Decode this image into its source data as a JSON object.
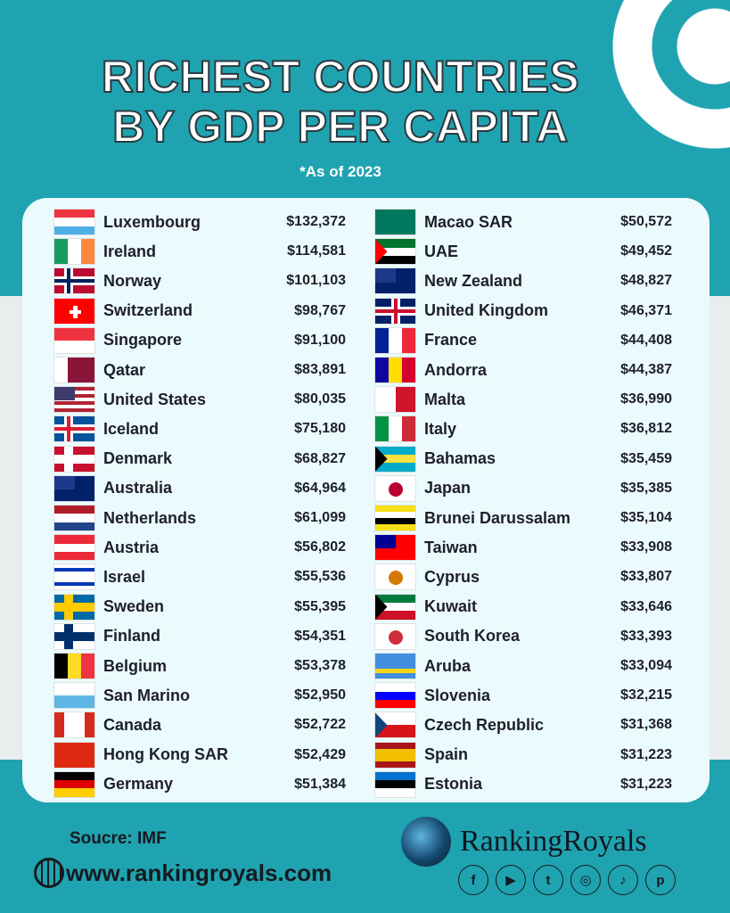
{
  "title_line1": "RICHEST COUNTRIES",
  "title_line2": "BY GDP PER CAPITA",
  "subtitle": "*As of 2023",
  "colors": {
    "background": "#20a3b0",
    "card": "#ebfbfd",
    "text": "#1e1f2a"
  },
  "left": [
    {
      "name": "Luxembourg",
      "value": "$132,372",
      "flag": {
        "t": "h",
        "c": [
          "#ef3340",
          "#ffffff",
          "#4fb0e8"
        ]
      }
    },
    {
      "name": "Ireland",
      "value": "$114,581",
      "flag": {
        "t": "v",
        "c": [
          "#169b62",
          "#ffffff",
          "#ff883e"
        ]
      }
    },
    {
      "name": "Norway",
      "value": "$101,103",
      "flag": {
        "t": "cross",
        "bg": "#ba0c2f",
        "o": "#ffffff",
        "i": "#00205b"
      }
    },
    {
      "name": "Switzerland",
      "value": "$98,767",
      "flag": {
        "t": "plus",
        "bg": "#ff0000",
        "o": "#ffffff"
      }
    },
    {
      "name": "Singapore",
      "value": "$91,100",
      "flag": {
        "t": "h",
        "c": [
          "#ef3340",
          "#ffffff"
        ]
      }
    },
    {
      "name": "Qatar",
      "value": "$83,891",
      "flag": {
        "t": "v",
        "c": [
          "#ffffff",
          "#8a1538",
          "#8a1538"
        ]
      }
    },
    {
      "name": "United States",
      "value": "$80,035",
      "flag": {
        "t": "canton",
        "c": [
          "#b22234",
          "#ffffff",
          "#b22234",
          "#ffffff",
          "#b22234",
          "#ffffff",
          "#b22234"
        ],
        "k": "#3c3b6e"
      }
    },
    {
      "name": "Iceland",
      "value": "$75,180",
      "flag": {
        "t": "cross",
        "bg": "#02529c",
        "o": "#ffffff",
        "i": "#dc1e35"
      }
    },
    {
      "name": "Denmark",
      "value": "$68,827",
      "flag": {
        "t": "cross",
        "bg": "#c8102e",
        "o": "#ffffff",
        "i": "#ffffff"
      }
    },
    {
      "name": "Australia",
      "value": "$64,964",
      "flag": {
        "t": "canton",
        "c": [
          "#012169"
        ],
        "k": "#1d3a8a"
      }
    },
    {
      "name": "Netherlands",
      "value": "$61,099",
      "flag": {
        "t": "h",
        "c": [
          "#ae1c28",
          "#ffffff",
          "#21468b"
        ]
      }
    },
    {
      "name": "Austria",
      "value": "$56,802",
      "flag": {
        "t": "h",
        "c": [
          "#ed2939",
          "#ffffff",
          "#ed2939"
        ]
      }
    },
    {
      "name": "Israel",
      "value": "$55,536",
      "flag": {
        "t": "h",
        "c": [
          "#ffffff",
          "#0038b8",
          "#ffffff",
          "#ffffff",
          "#ffffff",
          "#0038b8",
          "#ffffff"
        ]
      }
    },
    {
      "name": "Sweden",
      "value": "$55,395",
      "flag": {
        "t": "cross",
        "bg": "#006aa7",
        "o": "#fecc00",
        "i": "#fecc00"
      }
    },
    {
      "name": "Finland",
      "value": "$54,351",
      "flag": {
        "t": "cross",
        "bg": "#ffffff",
        "o": "#002f6c",
        "i": "#002f6c"
      }
    },
    {
      "name": "Belgium",
      "value": "$53,378",
      "flag": {
        "t": "v",
        "c": [
          "#000000",
          "#fdda24",
          "#ef3340"
        ]
      }
    },
    {
      "name": "San Marino",
      "value": "$52,950",
      "flag": {
        "t": "h",
        "c": [
          "#ffffff",
          "#5eb6e4"
        ]
      }
    },
    {
      "name": "Canada",
      "value": "$52,722",
      "flag": {
        "t": "v",
        "c": [
          "#d52b1e",
          "#ffffff",
          "#ffffff",
          "#d52b1e"
        ]
      }
    },
    {
      "name": "Hong Kong SAR",
      "value": "$52,429",
      "flag": {
        "t": "h",
        "c": [
          "#de2910"
        ]
      }
    },
    {
      "name": "Germany",
      "value": "$51,384",
      "flag": {
        "t": "h",
        "c": [
          "#000000",
          "#dd0000",
          "#ffce00"
        ]
      }
    }
  ],
  "right": [
    {
      "name": "Macao SAR",
      "value": "$50,572",
      "flag": {
        "t": "h",
        "c": [
          "#00785e"
        ]
      }
    },
    {
      "name": "UAE",
      "value": "$49,452",
      "flag": {
        "t": "hoist",
        "c": [
          "#00732f",
          "#ffffff",
          "#000000"
        ],
        "k": "#ff0000"
      }
    },
    {
      "name": "New Zealand",
      "value": "$48,827",
      "flag": {
        "t": "canton",
        "c": [
          "#012169"
        ],
        "k": "#1d3a8a"
      }
    },
    {
      "name": "United Kingdom",
      "value": "$46,371",
      "flag": {
        "t": "cross",
        "bg": "#012169",
        "o": "#ffffff",
        "i": "#c8102e",
        "center": true
      }
    },
    {
      "name": "France",
      "value": "$44,408",
      "flag": {
        "t": "v",
        "c": [
          "#002395",
          "#ffffff",
          "#ed2939"
        ]
      }
    },
    {
      "name": "Andorra",
      "value": "$44,387",
      "flag": {
        "t": "v",
        "c": [
          "#10069f",
          "#fedf00",
          "#d50032"
        ]
      }
    },
    {
      "name": "Malta",
      "value": "$36,990",
      "flag": {
        "t": "v",
        "c": [
          "#ffffff",
          "#cf142b"
        ]
      }
    },
    {
      "name": "Italy",
      "value": "$36,812",
      "flag": {
        "t": "v",
        "c": [
          "#009246",
          "#ffffff",
          "#ce2b37"
        ]
      }
    },
    {
      "name": "Bahamas",
      "value": "$35,459",
      "flag": {
        "t": "hoist",
        "c": [
          "#00abc9",
          "#fae042",
          "#00abc9"
        ],
        "k": "#000000"
      }
    },
    {
      "name": "Japan",
      "value": "$35,385",
      "flag": {
        "t": "disc",
        "bg": "#ffffff",
        "o": "#bc002d"
      }
    },
    {
      "name": "Brunei Darussalam",
      "value": "$35,104",
      "flag": {
        "t": "h",
        "c": [
          "#f7e017",
          "#ffffff",
          "#000000",
          "#f7e017"
        ]
      }
    },
    {
      "name": "Taiwan",
      "value": "$33,908",
      "flag": {
        "t": "canton",
        "c": [
          "#fe0000"
        ],
        "k": "#000095"
      }
    },
    {
      "name": "Cyprus",
      "value": "$33,807",
      "flag": {
        "t": "disc",
        "bg": "#ffffff",
        "o": "#d57800"
      }
    },
    {
      "name": "Kuwait",
      "value": "$33,646",
      "flag": {
        "t": "hoist",
        "c": [
          "#007a3d",
          "#ffffff",
          "#ce1126"
        ],
        "k": "#000000"
      }
    },
    {
      "name": "South Korea",
      "value": "$33,393",
      "flag": {
        "t": "disc",
        "bg": "#ffffff",
        "o": "#cd2e3a"
      }
    },
    {
      "name": "Aruba",
      "value": "$33,094",
      "flag": {
        "t": "h",
        "c": [
          "#418fde",
          "#418fde",
          "#418fde",
          "#f9d616",
          "#418fde"
        ]
      }
    },
    {
      "name": "Slovenia",
      "value": "$32,215",
      "flag": {
        "t": "h",
        "c": [
          "#ffffff",
          "#0000ff",
          "#ff0000"
        ]
      }
    },
    {
      "name": "Czech Republic",
      "value": "$31,368",
      "flag": {
        "t": "hoist",
        "c": [
          "#ffffff",
          "#d7141a"
        ],
        "k": "#11457e"
      }
    },
    {
      "name": "Spain",
      "value": "$31,223",
      "flag": {
        "t": "h",
        "c": [
          "#aa151b",
          "#f1bf00",
          "#f1bf00",
          "#aa151b"
        ]
      }
    },
    {
      "name": "Estonia",
      "value": "$31,223",
      "flag": {
        "t": "h",
        "c": [
          "#0072ce",
          "#000000",
          "#ffffff"
        ]
      }
    }
  ],
  "footer": {
    "source": "Soucre: IMF",
    "website": "www.rankingroyals.com",
    "brand": "RankingRoyals",
    "social": [
      {
        "icon": "facebook-icon",
        "glyph": "f"
      },
      {
        "icon": "youtube-icon",
        "glyph": "▶"
      },
      {
        "icon": "twitter-icon",
        "glyph": "t"
      },
      {
        "icon": "instagram-icon",
        "glyph": "◎"
      },
      {
        "icon": "tiktok-icon",
        "glyph": "♪"
      },
      {
        "icon": "pinterest-icon",
        "glyph": "p"
      }
    ]
  }
}
